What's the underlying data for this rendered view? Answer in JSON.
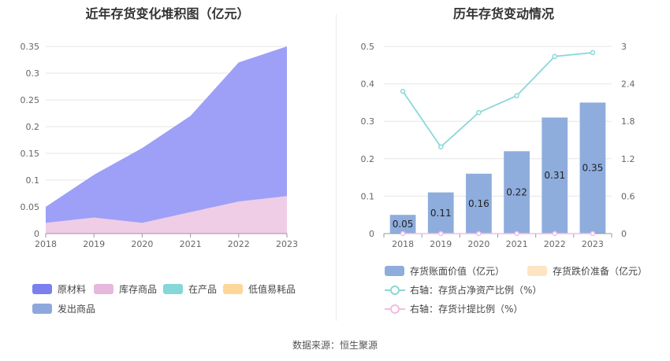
{
  "left": {
    "title": "近年存货变化堆积图（亿元）",
    "legend": [
      {
        "label": "原材料",
        "color": "#7b7ff0"
      },
      {
        "label": "库存商品",
        "color": "#e6b8dd"
      },
      {
        "label": "在产品",
        "color": "#86d7d8"
      },
      {
        "label": "低值易耗品",
        "color": "#fdd79a"
      },
      {
        "label": "发出商品",
        "color": "#8ea8dd"
      }
    ]
  },
  "right": {
    "title": "历年存货变动情况",
    "legend": [
      {
        "label": "存货账面价值（亿元）",
        "color": "#8eaddd",
        "kind": "bar"
      },
      {
        "label": "存货跌价准备（亿元）",
        "color": "#fde4c3",
        "kind": "bar"
      },
      {
        "label": "右轴：存货占净资产比例（%）",
        "color": "#8dd7d8",
        "kind": "line"
      },
      {
        "label": "右轴：存货计提比例（%）",
        "color": "#f0bde3",
        "kind": "line"
      }
    ]
  },
  "source": "数据来源：恒生聚源",
  "chart_data": [
    {
      "type": "area",
      "stacked": true,
      "title": "近年存货变化堆积图（亿元）",
      "categories": [
        "2018",
        "2019",
        "2020",
        "2021",
        "2022",
        "2023"
      ],
      "y_ticks": [
        "0",
        "0.05",
        "0.1",
        "0.15",
        "0.2",
        "0.25",
        "0.3",
        "0.35"
      ],
      "ylim": [
        0,
        0.35
      ],
      "series": [
        {
          "name": "库存商品",
          "color": "#f0cde6",
          "values": [
            0.02,
            0.03,
            0.02,
            0.04,
            0.06,
            0.07
          ]
        },
        {
          "name": "原材料",
          "color": "#9da0f6",
          "values": [
            0.03,
            0.08,
            0.14,
            0.18,
            0.26,
            0.28
          ]
        },
        {
          "name": "在产品",
          "color": "#86d7d8",
          "values": [
            0,
            0,
            0,
            0,
            0,
            0
          ]
        },
        {
          "name": "低值易耗品",
          "color": "#fdd79a",
          "values": [
            0,
            0,
            0,
            0,
            0,
            0
          ]
        },
        {
          "name": "发出商品",
          "color": "#8ea8dd",
          "values": [
            0,
            0,
            0,
            0,
            0,
            0
          ]
        }
      ],
      "legend_position": "bottom"
    },
    {
      "type": "bar",
      "title": "历年存货变动情况",
      "categories": [
        "2018",
        "2019",
        "2020",
        "2021",
        "2022",
        "2023"
      ],
      "y_ticks_left": [
        "0",
        "0.1",
        "0.2",
        "0.3",
        "0.4",
        "0.5"
      ],
      "y_ticks_right": [
        "0",
        "0.6",
        "1.2",
        "1.8",
        "2.4",
        "3"
      ],
      "ylim_left": [
        0,
        0.5
      ],
      "ylim_right": [
        0,
        3
      ],
      "series": [
        {
          "name": "存货账面价值（亿元）",
          "type": "bar",
          "axis": "left",
          "color": "#8eaddd",
          "values": [
            0.05,
            0.11,
            0.16,
            0.22,
            0.31,
            0.35
          ],
          "labels": [
            "0.05",
            "0.11",
            "0.16",
            "0.22",
            "0.31",
            "0.35"
          ]
        },
        {
          "name": "存货跌价准备（亿元）",
          "type": "bar",
          "axis": "left",
          "color": "#fde4c3",
          "values": [
            0,
            0,
            0,
            0,
            0,
            0
          ]
        },
        {
          "name": "右轴：存货占净资产比例（%）",
          "type": "line",
          "axis": "right",
          "color": "#8dd7d8",
          "values": [
            2.28,
            1.39,
            1.94,
            2.21,
            2.84,
            2.9
          ]
        },
        {
          "name": "右轴：存货计提比例（%）",
          "type": "line",
          "axis": "right",
          "color": "#f0bde3",
          "values": [
            0,
            0,
            0,
            0,
            0,
            0
          ]
        }
      ],
      "legend_position": "bottom"
    }
  ]
}
